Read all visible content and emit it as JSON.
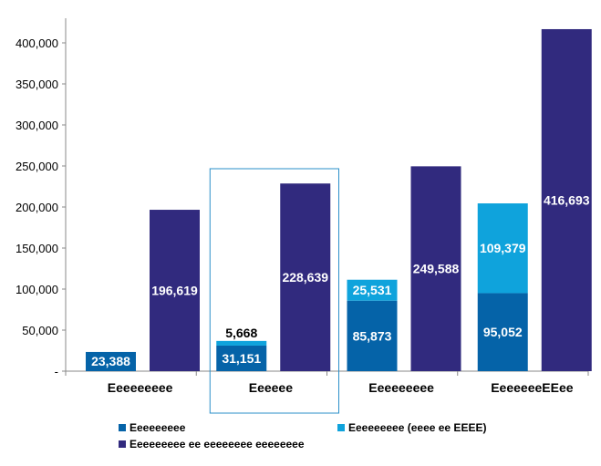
{
  "colors": {
    "series1": "#0563A8",
    "series2": "#0FA3DC",
    "series3": "#312A7E",
    "highlight_box": "#2A8FC9",
    "axis": "#888888"
  },
  "chart_data": {
    "type": "bar",
    "ylim": [
      0,
      400000
    ],
    "y_ticks": [
      "-",
      "50,000",
      "100,000",
      "150,000",
      "200,000",
      "250,000",
      "300,000",
      "350,000",
      "400,000"
    ],
    "y_tick_values": [
      0,
      50000,
      100000,
      150000,
      200000,
      250000,
      300000,
      350000,
      400000
    ],
    "categories": [
      "Eeeeeeeee",
      "Eeeeee",
      "Eeeeeeeee",
      "EeeeeeeEEee"
    ],
    "highlighted_category": "Eeeeee",
    "series": [
      {
        "name": "Eeeeeeeee",
        "values": [
          23388,
          31151,
          85873,
          95052
        ]
      },
      {
        "name": "Eeeeeeeee (eeee ee EEEE)",
        "values": [
          null,
          5668,
          25531,
          109379
        ]
      },
      {
        "name": "Eeeeeeeee ee eeeeeeee eeeeeeee",
        "values": [
          196619,
          228639,
          249588,
          416693
        ]
      }
    ],
    "data_labels": {
      "series1": [
        "23,388",
        "31,151",
        "85,873",
        "95,052"
      ],
      "series2": [
        "",
        "5,668",
        "25,531",
        "109,379"
      ],
      "series3": [
        "196,619",
        "228,639",
        "249,588",
        "416,693"
      ]
    },
    "legend": {
      "position": "bottom",
      "items": [
        "Eeeeeeeee",
        "Eeeeeeeee (eeee ee EEEE)",
        "Eeeeeeeee ee eeeeeeee eeeeeeee"
      ]
    },
    "grid": false
  }
}
